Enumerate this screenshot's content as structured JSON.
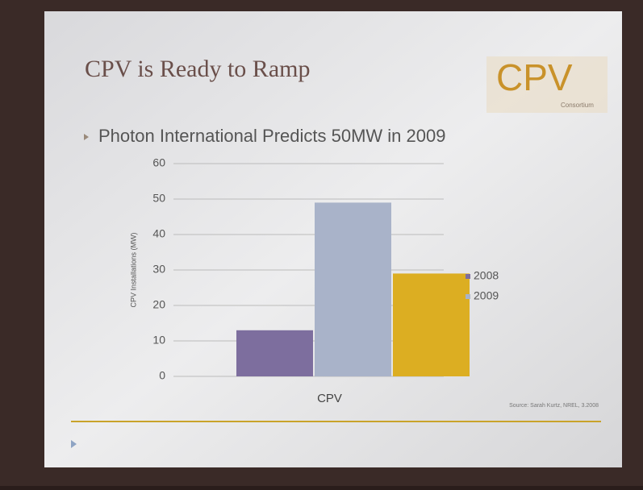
{
  "slide": {
    "title": "CPV is Ready to Ramp",
    "bullet": "Photon International Predicts 50MW in 2009",
    "logo": "CPV",
    "logo_subtitle": "Consortium",
    "source": "Source: Sarah Kurtz, NREL, 3.2008"
  },
  "chart_data": {
    "type": "bar",
    "ylabel": "CPV Installations (MW)",
    "categories": [
      "CPV"
    ],
    "series": [
      {
        "name": "2008",
        "color": "#7d6e9e",
        "values": [
          13
        ]
      },
      {
        "name": "2009",
        "color": "#a9b3c9",
        "values": [
          49
        ]
      },
      {
        "color": "#dcae22",
        "values": [
          29
        ]
      }
    ],
    "ylim": [
      0,
      60
    ],
    "yticks": [
      0,
      10,
      20,
      30,
      40,
      50,
      60
    ],
    "grid": true
  }
}
